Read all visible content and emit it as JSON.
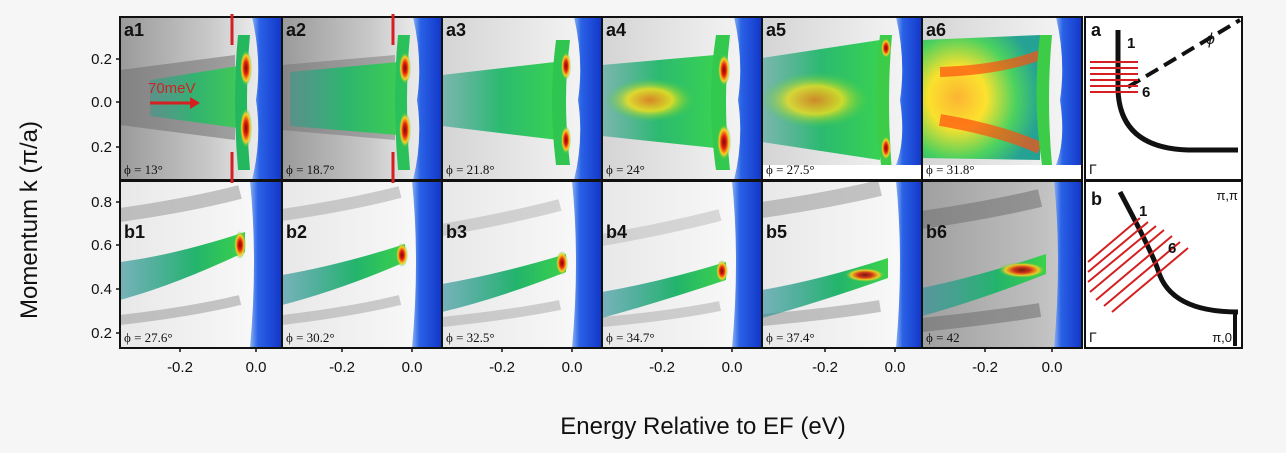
{
  "axes": {
    "y_label": "Momentum k (π/a)",
    "x_label": "Energy Relative to EF (eV)",
    "top_row_y_ticks": [
      "0.2",
      "0.0",
      "0.2"
    ],
    "bottom_row_y_ticks": [
      "0.8",
      "0.6",
      "0.4",
      "0.2"
    ],
    "x_ticks": [
      "-0.2",
      "0.0"
    ]
  },
  "top_row": [
    {
      "label": "a1",
      "phi": "ϕ = 13°"
    },
    {
      "label": "a2",
      "phi": "ϕ = 18.7°"
    },
    {
      "label": "a3",
      "phi": "ϕ = 21.8°"
    },
    {
      "label": "a4",
      "phi": "ϕ = 24°"
    },
    {
      "label": "a5",
      "phi": "ϕ = 27.5°"
    },
    {
      "label": "a6",
      "phi": "ϕ = 31.8°"
    }
  ],
  "bottom_row": [
    {
      "label": "b1",
      "phi": "ϕ = 27.6°"
    },
    {
      "label": "b2",
      "phi": "ϕ = 30.2°"
    },
    {
      "label": "b3",
      "phi": "ϕ = 32.5°"
    },
    {
      "label": "b4",
      "phi": "ϕ = 34.7°"
    },
    {
      "label": "b5",
      "phi": "ϕ = 37.4°"
    },
    {
      "label": "b6",
      "phi": "ϕ = 42"
    }
  ],
  "annotation": "70meV",
  "schematic_a": {
    "label": "a",
    "cut_first": "1",
    "cut_last": "6",
    "angle": "ϕ",
    "corner": "Γ"
  },
  "schematic_b": {
    "label": "b",
    "cut_first": "1",
    "cut_last": "6",
    "corner_top": "π,π",
    "corner_bottom_left": "Γ",
    "corner_bottom_right": "π,0"
  },
  "colors": {
    "blue": "#1744d8",
    "green": "#22c25a",
    "yellow": "#ffe21a",
    "red": "#d81818",
    "cut_lines": "#d42020"
  }
}
